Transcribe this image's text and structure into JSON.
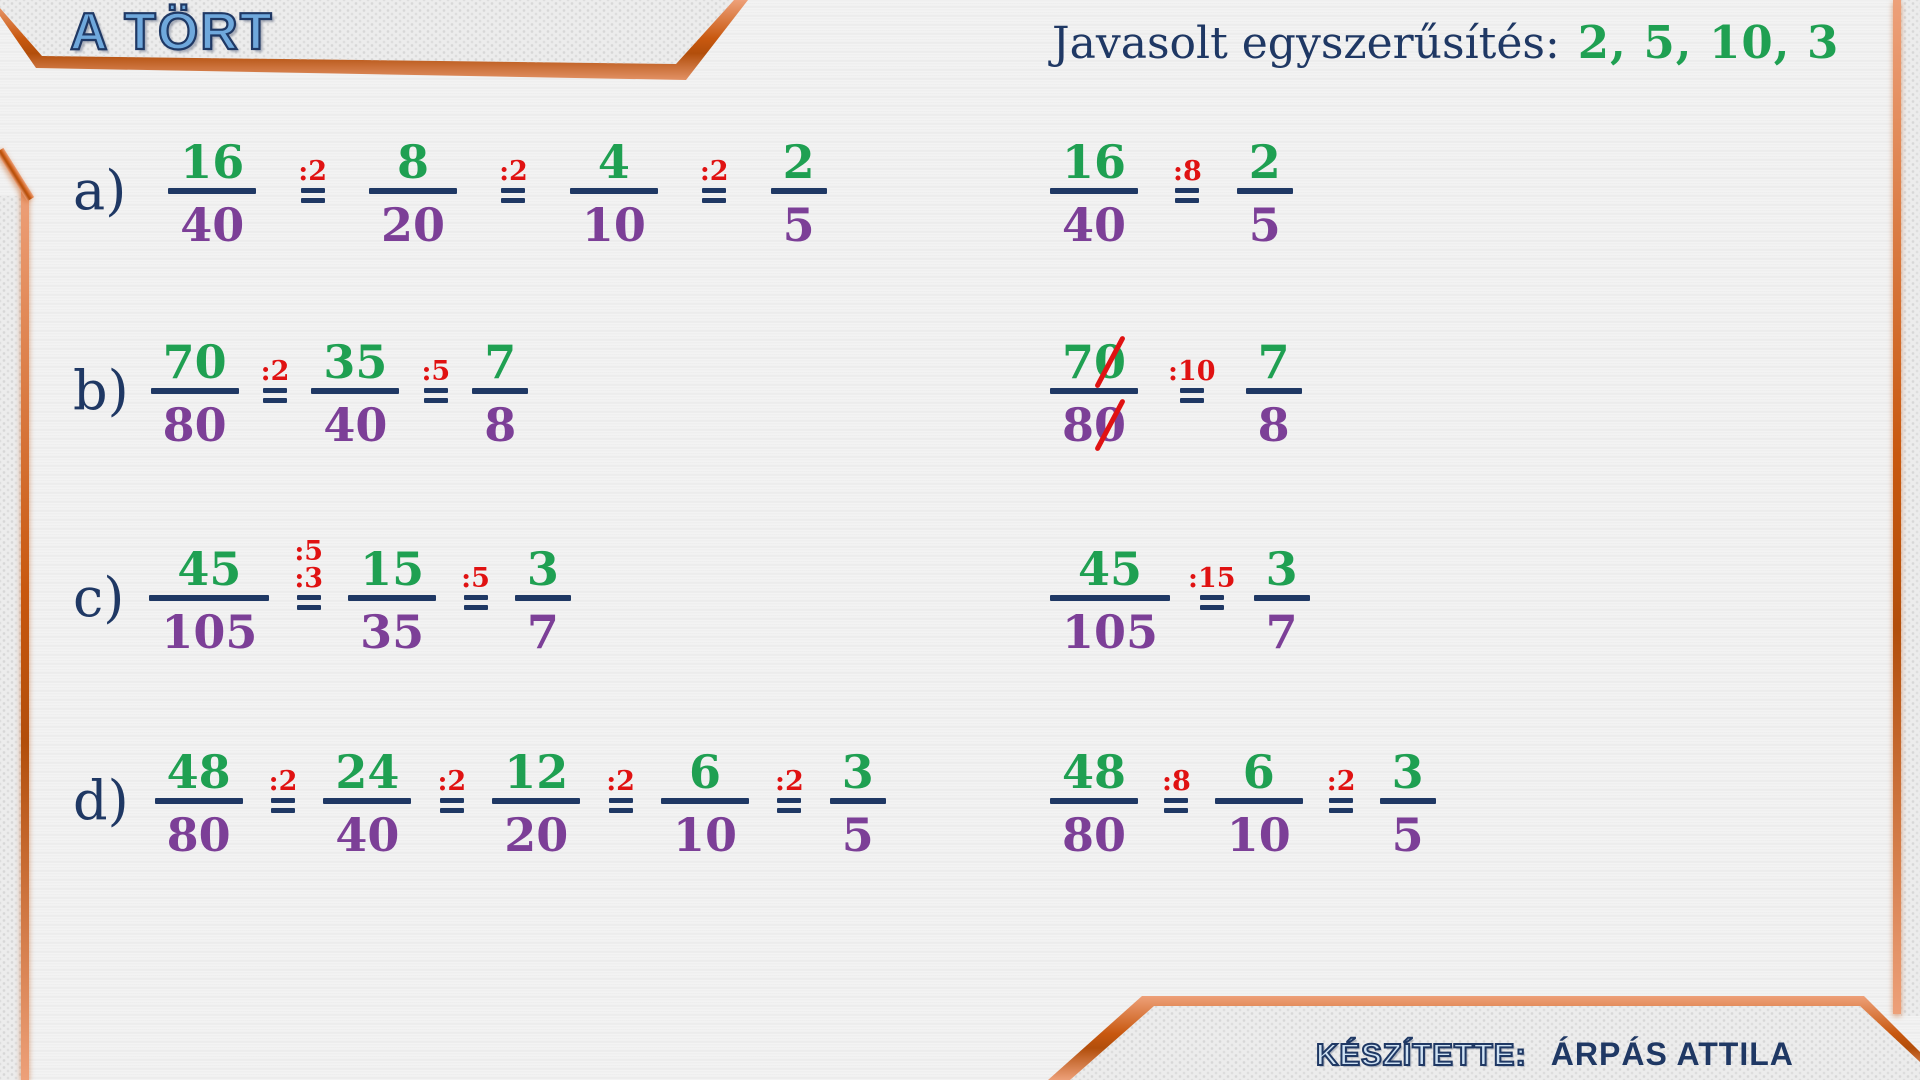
{
  "title": "A TÖRT",
  "header": {
    "label": "Javasolt egyszerűsítés:",
    "values": "2, 5, 10, 3"
  },
  "footer": {
    "label": "KÉSZÍTETTE:",
    "author": "ÁRPÁS ATTILA"
  },
  "colors": {
    "navy": "#1f3864",
    "green": "#1fa052",
    "purple": "#7c3f97",
    "red": "#e01212",
    "orange": "#c8580f",
    "orange_light": "#eda079",
    "title_blue": "#6fa8dc",
    "footer_fill": "#cfe2f3",
    "bg": "#f1f1f1",
    "hex_bg": "#ececec"
  },
  "rows": [
    {
      "label": "a)",
      "left": [
        {
          "type": "fraction",
          "num": "16",
          "den": "40"
        },
        {
          "type": "op",
          "labels": [
            ":2"
          ]
        },
        {
          "type": "fraction",
          "num": "8",
          "den": "20"
        },
        {
          "type": "op",
          "labels": [
            ":2"
          ]
        },
        {
          "type": "fraction",
          "num": "4",
          "den": "10"
        },
        {
          "type": "op",
          "labels": [
            ":2"
          ]
        },
        {
          "type": "fraction",
          "num": "2",
          "den": "5"
        }
      ],
      "right": [
        {
          "type": "fraction",
          "num": "16",
          "den": "40"
        },
        {
          "type": "op",
          "labels": [
            ":8"
          ]
        },
        {
          "type": "fraction",
          "num": "2",
          "den": "5"
        }
      ]
    },
    {
      "label": "b)",
      "left": [
        {
          "type": "fraction",
          "num": "70",
          "den": "80"
        },
        {
          "type": "op",
          "labels": [
            ":2"
          ]
        },
        {
          "type": "fraction",
          "num": "35",
          "den": "40"
        },
        {
          "type": "op",
          "labels": [
            ":5"
          ]
        },
        {
          "type": "fraction",
          "num": "7",
          "den": "8"
        }
      ],
      "right": [
        {
          "type": "fraction",
          "num": "70",
          "den": "80",
          "slash_last": true
        },
        {
          "type": "op",
          "labels": [
            ":10"
          ]
        },
        {
          "type": "fraction",
          "num": "7",
          "den": "8"
        }
      ]
    },
    {
      "label": "c)",
      "left": [
        {
          "type": "fraction",
          "num": "45",
          "den": "105"
        },
        {
          "type": "op",
          "labels": [
            ":5",
            ":3"
          ]
        },
        {
          "type": "fraction",
          "num": "15",
          "den": "35"
        },
        {
          "type": "op",
          "labels": [
            ":5"
          ]
        },
        {
          "type": "fraction",
          "num": "3",
          "den": "7"
        }
      ],
      "right": [
        {
          "type": "fraction",
          "num": "45",
          "den": "105"
        },
        {
          "type": "op",
          "labels": [
            ":15"
          ]
        },
        {
          "type": "fraction",
          "num": "3",
          "den": "7"
        }
      ]
    },
    {
      "label": "d)",
      "left": [
        {
          "type": "fraction",
          "num": "48",
          "den": "80"
        },
        {
          "type": "op",
          "labels": [
            ":2"
          ]
        },
        {
          "type": "fraction",
          "num": "24",
          "den": "40"
        },
        {
          "type": "op",
          "labels": [
            ":2"
          ]
        },
        {
          "type": "fraction",
          "num": "12",
          "den": "20"
        },
        {
          "type": "op",
          "labels": [
            ":2"
          ]
        },
        {
          "type": "fraction",
          "num": "6",
          "den": "10"
        },
        {
          "type": "op",
          "labels": [
            ":2"
          ]
        },
        {
          "type": "fraction",
          "num": "3",
          "den": "5"
        }
      ],
      "right": [
        {
          "type": "fraction",
          "num": "48",
          "den": "80"
        },
        {
          "type": "op",
          "labels": [
            ":8"
          ]
        },
        {
          "type": "fraction",
          "num": "6",
          "den": "10"
        },
        {
          "type": "op",
          "labels": [
            ":2"
          ]
        },
        {
          "type": "fraction",
          "num": "3",
          "den": "5"
        }
      ]
    }
  ]
}
